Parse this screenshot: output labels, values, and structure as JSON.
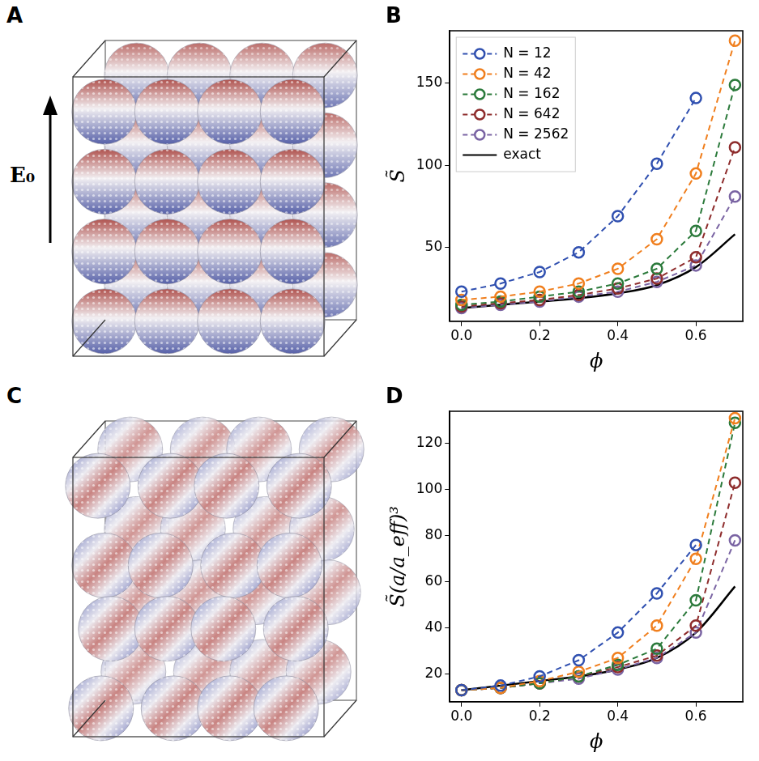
{
  "figure": {
    "panels": [
      {
        "label": "A",
        "field_label": "E₀"
      },
      {
        "label": "B"
      },
      {
        "label": "C"
      },
      {
        "label": "D"
      }
    ]
  },
  "chart_data": [
    {
      "type": "line",
      "x_label": "ϕ",
      "y_label": "S̃",
      "x": [
        0,
        0.1,
        0.2,
        0.3,
        0.4,
        0.5,
        0.6,
        0.7
      ],
      "xlim": [
        -0.03,
        0.72
      ],
      "xticks": [
        {
          "value": 0,
          "label": "0.0"
        },
        0.2,
        0.4,
        0.6
      ],
      "ylim": [
        5,
        182
      ],
      "yticks": [
        50,
        100,
        150
      ],
      "grid": false,
      "legend": "upper left",
      "series": [
        {
          "name": "N = 12",
          "color": "#3050b0",
          "marker": "circle",
          "line_style": "dashed",
          "values": [
            23,
            28,
            35,
            47,
            69,
            101,
            141,
            null
          ]
        },
        {
          "name": "N = 42",
          "color": "#f07f1e",
          "marker": "circle",
          "line_style": "dashed",
          "values": [
            18,
            20,
            23,
            28,
            37,
            55,
            95,
            176
          ]
        },
        {
          "name": "N = 162",
          "color": "#2b7a3b",
          "marker": "circle",
          "line_style": "dashed",
          "values": [
            15,
            17,
            20,
            23,
            28,
            37,
            60,
            149
          ]
        },
        {
          "name": "N = 642",
          "color": "#8e2c2c",
          "marker": "circle",
          "line_style": "dashed",
          "values": [
            14,
            16,
            18,
            21,
            25,
            31,
            44,
            111
          ]
        },
        {
          "name": "N = 2562",
          "color": "#7a64a3",
          "marker": "circle",
          "line_style": "dashed",
          "values": [
            13,
            15,
            17,
            20,
            23,
            29,
            39,
            81
          ]
        },
        {
          "name": "exact",
          "color": "#000000",
          "marker": "none",
          "line_style": "solid",
          "values": [
            13,
            15,
            17,
            19,
            22,
            27,
            38,
            58
          ]
        }
      ]
    },
    {
      "type": "line",
      "x_label": "ϕ",
      "y_label": "S̃(a/a_eff)³",
      "x": [
        0,
        0.1,
        0.2,
        0.3,
        0.4,
        0.5,
        0.6,
        0.7
      ],
      "xlim": [
        -0.03,
        0.72
      ],
      "xticks": [
        {
          "value": 0,
          "label": "0.0"
        },
        0.2,
        0.4,
        0.6
      ],
      "ylim": [
        8,
        134
      ],
      "yticks": [
        20,
        40,
        60,
        80,
        100,
        120
      ],
      "grid": false,
      "series": [
        {
          "name": "N = 12",
          "color": "#3050b0",
          "marker": "circle",
          "line_style": "dashed",
          "values": [
            13,
            15,
            19,
            26,
            38,
            55,
            76,
            null
          ]
        },
        {
          "name": "N = 42",
          "color": "#f07f1e",
          "marker": "circle",
          "line_style": "dashed",
          "values": [
            13,
            14,
            17,
            21,
            27,
            41,
            70,
            131
          ]
        },
        {
          "name": "N = 162",
          "color": "#2b7a3b",
          "marker": "circle",
          "line_style": "dashed",
          "values": [
            13,
            14,
            16,
            19,
            24,
            31,
            52,
            129
          ]
        },
        {
          "name": "N = 642",
          "color": "#8e2c2c",
          "marker": "circle",
          "line_style": "dashed",
          "values": [
            13,
            14,
            16,
            19,
            23,
            28,
            41,
            103
          ]
        },
        {
          "name": "N = 2562",
          "color": "#7a64a3",
          "marker": "circle",
          "line_style": "dashed",
          "values": [
            13,
            14,
            16,
            18,
            22,
            27,
            38,
            78
          ]
        },
        {
          "name": "exact",
          "color": "#000000",
          "marker": "none",
          "line_style": "solid",
          "values": [
            13,
            15,
            17,
            19,
            22,
            27,
            38,
            58
          ]
        }
      ]
    }
  ]
}
